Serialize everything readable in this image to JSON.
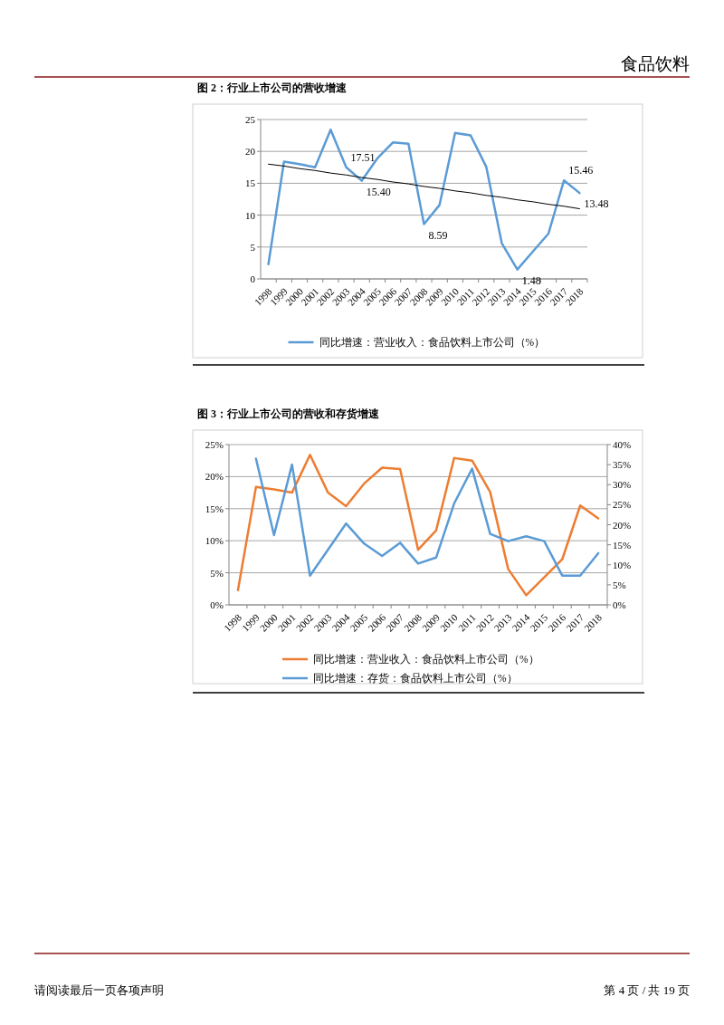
{
  "chart_data": [
    {
      "type": "line",
      "title": "图 2：行业上市公司的营收增速",
      "annotations": [
        "食品饮料"
      ],
      "categories": [
        "1998",
        "1999",
        "2000",
        "2001",
        "2002",
        "2003",
        "2004",
        "2005",
        "2006",
        "2007",
        "2008",
        "2009",
        "2010",
        "2011",
        "2012",
        "2013",
        "2014",
        "2015",
        "2016",
        "2017",
        "2018"
      ],
      "series": [
        {
          "name": "同比增速：营业收入：食品饮料上市公司（%）",
          "color": "#5b9bd5",
          "values": [
            2.3,
            18.4,
            18.0,
            17.5,
            23.4,
            17.51,
            15.4,
            18.9,
            21.4,
            21.2,
            8.59,
            11.6,
            22.9,
            22.5,
            17.6,
            5.6,
            1.48,
            4.3,
            7.1,
            15.46,
            13.48
          ],
          "value_labels": [
            null,
            null,
            null,
            null,
            null,
            "17.51",
            "15.40",
            null,
            null,
            null,
            "8.59",
            null,
            null,
            null,
            null,
            null,
            "1.48",
            null,
            null,
            "15.46",
            "13.48"
          ]
        },
        {
          "type": "line",
          "color": "#000000",
          "values": [
            18.0,
            17.7,
            17.3,
            17.0,
            16.6,
            16.3,
            15.9,
            15.6,
            15.2,
            14.9,
            14.5,
            14.2,
            13.8,
            13.5,
            13.1,
            12.8,
            12.4,
            12.1,
            11.7,
            11.4,
            11.0
          ]
        }
      ],
      "ylim": [
        0,
        25
      ],
      "yticks": [
        0,
        5,
        10,
        15,
        20,
        25
      ],
      "grid": "y",
      "legend": "bottom",
      "marker": "none",
      "line_style": "solid"
    },
    {
      "type": "line",
      "title": "图 3：行业上市公司的营收和存货增速",
      "annotations": [
        "请阅读最后一页各项声明",
        "第 4 页 / 共 19 页"
      ],
      "categories": [
        "1998",
        "1999",
        "2000",
        "2001",
        "2002",
        "2003",
        "2004",
        "2005",
        "2006",
        "2007",
        "2008",
        "2009",
        "2010",
        "2011",
        "2012",
        "2013",
        "2014",
        "2015",
        "2016",
        "2017",
        "2018"
      ],
      "series": [
        {
          "name": "同比增速：营业收入：食品饮料上市公司（%）",
          "color": "#ed7d31",
          "values": [
            2.3,
            18.4,
            18.0,
            17.5,
            23.4,
            17.5,
            15.4,
            18.9,
            21.4,
            21.2,
            8.6,
            11.6,
            22.9,
            22.5,
            17.6,
            5.6,
            1.5,
            4.3,
            7.1,
            15.5,
            13.5
          ]
        },
        {
          "name": "同比增速：存货：食品饮料上市公司（%）",
          "color": "#5b9bd5",
          "axis": "y2",
          "values": [
            null,
            36.5,
            17.4,
            35.0,
            7.3,
            13.8,
            20.3,
            15.3,
            12.2,
            15.5,
            10.3,
            11.8,
            25.3,
            34.0,
            17.7,
            15.9,
            17.1,
            15.9,
            7.3,
            7.3,
            12.9
          ]
        }
      ],
      "ylim": [
        0,
        25
      ],
      "yticks": [
        {
          "value": 0,
          "label": "0%"
        },
        {
          "value": 5,
          "label": "5%"
        },
        {
          "value": 10,
          "label": "10%"
        },
        {
          "value": 15,
          "label": "15%"
        },
        {
          "value": 20,
          "label": "20%"
        },
        {
          "value": 25,
          "label": "25%"
        }
      ],
      "y2lim": [
        0,
        40
      ],
      "y2ticks": [
        {
          "value": 0,
          "label": "0%"
        },
        {
          "value": 5,
          "label": "5%"
        },
        {
          "value": 10,
          "label": "10%"
        },
        {
          "value": 15,
          "label": "15%"
        },
        {
          "value": 20,
          "label": "20%"
        },
        {
          "value": 25,
          "label": "25%"
        },
        {
          "value": 30,
          "label": "30%"
        },
        {
          "value": 35,
          "label": "35%"
        },
        {
          "value": 40,
          "label": "40%"
        }
      ],
      "grid": "y",
      "legend": "bottom",
      "marker": "none",
      "line_style": "solid"
    }
  ]
}
